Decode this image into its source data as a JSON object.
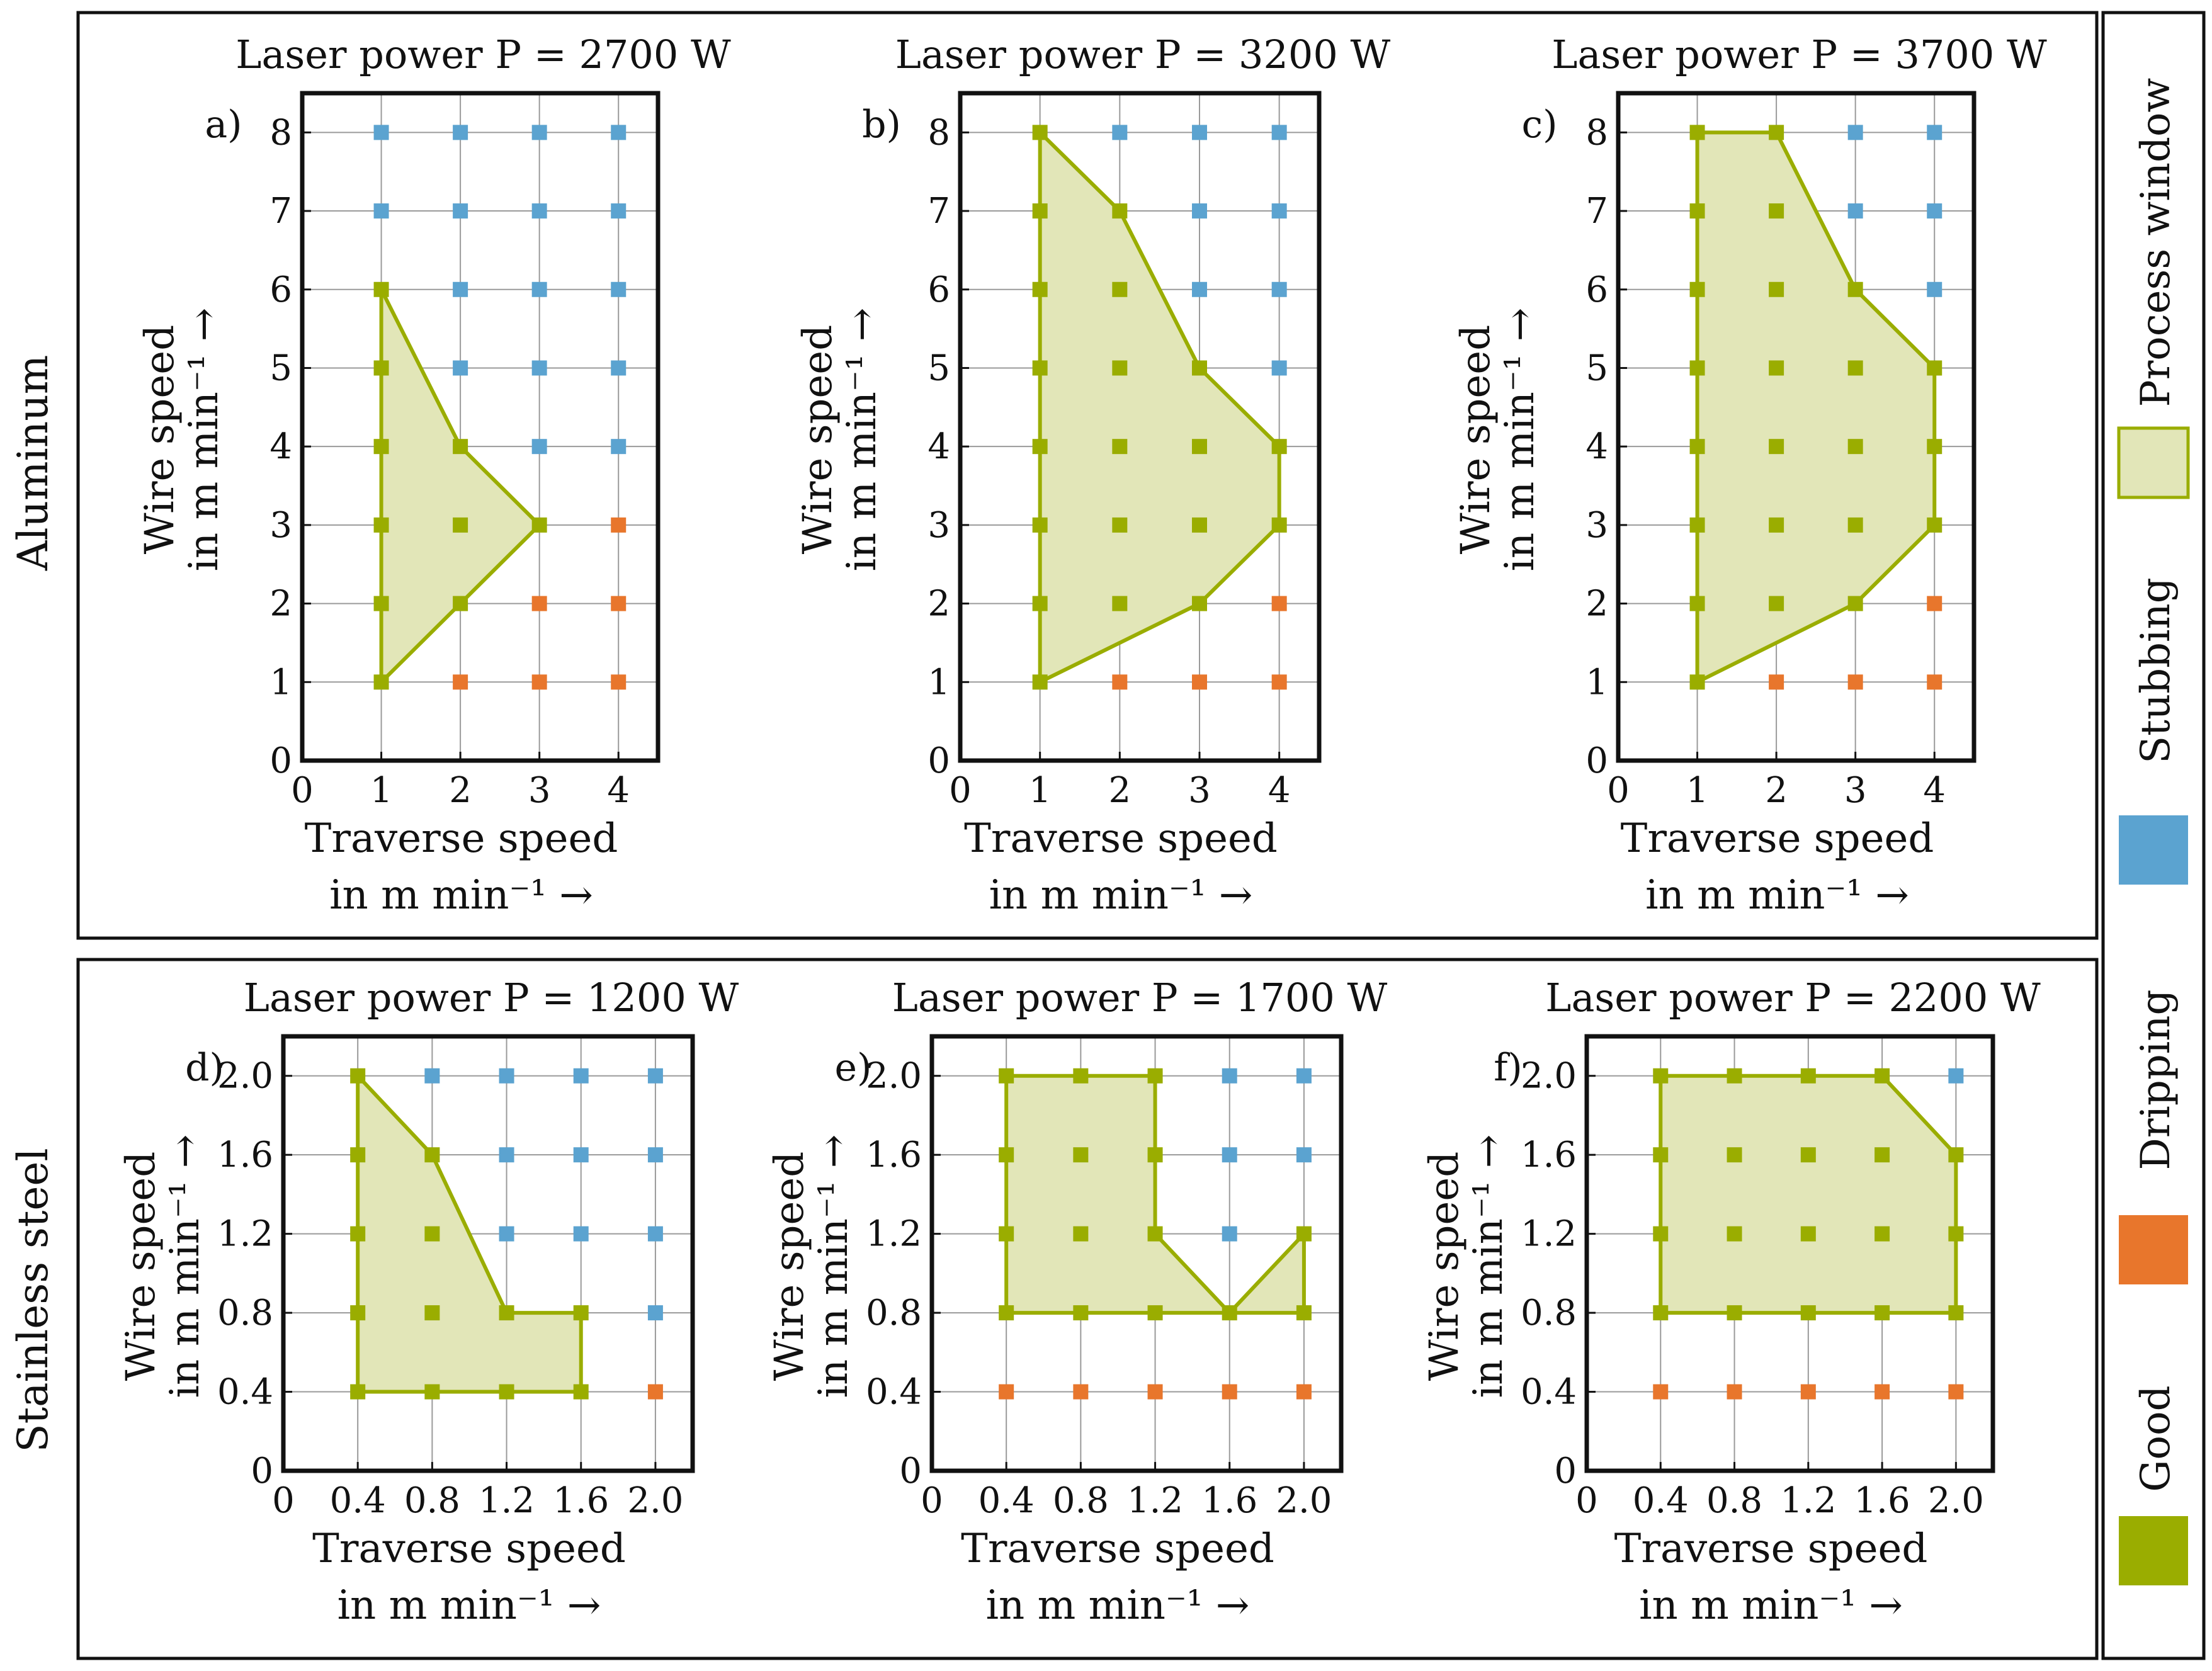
{
  "colors": {
    "good": "#9aad00",
    "stubbing": "#5ba3d0",
    "dripping": "#e8762c",
    "window_fill": "#e2e6b8",
    "window_stroke": "#9aad00"
  },
  "groups": {
    "aluminum": "Aluminum",
    "stainless": "Stainless steel"
  },
  "legend": {
    "process_window": "Process window",
    "stubbing": "Stubbing",
    "dripping": "Dripping",
    "good": "Good"
  },
  "chart_data": [
    {
      "type": "scatter",
      "panel": "a)",
      "title": "Laser power P = 2700 W",
      "xlabel": "Traverse speed in m min⁻¹ →",
      "ylabel": "Wire speed in m min⁻¹ →",
      "xlim": [
        0,
        4.5
      ],
      "ylim": [
        0,
        8.5
      ],
      "xticks": [
        0,
        1,
        2,
        3,
        4
      ],
      "yticks": [
        0,
        1,
        2,
        3,
        4,
        5,
        6,
        7,
        8
      ],
      "xtick_labels": [
        "0",
        "1",
        "2",
        "3",
        "4"
      ],
      "ytick_labels": [
        "0",
        "1",
        "2",
        "3",
        "4",
        "5",
        "6",
        "7",
        "8"
      ],
      "good": [
        [
          1,
          1
        ],
        [
          1,
          2
        ],
        [
          1,
          3
        ],
        [
          1,
          4
        ],
        [
          1,
          5
        ],
        [
          1,
          6
        ],
        [
          2,
          2
        ],
        [
          2,
          3
        ],
        [
          2,
          4
        ],
        [
          3,
          3
        ]
      ],
      "stubbing": [
        [
          1,
          7
        ],
        [
          1,
          8
        ],
        [
          2,
          5
        ],
        [
          2,
          6
        ],
        [
          2,
          7
        ],
        [
          2,
          8
        ],
        [
          3,
          4
        ],
        [
          3,
          5
        ],
        [
          3,
          6
        ],
        [
          3,
          7
        ],
        [
          3,
          8
        ],
        [
          4,
          4
        ],
        [
          4,
          5
        ],
        [
          4,
          6
        ],
        [
          4,
          7
        ],
        [
          4,
          8
        ]
      ],
      "dripping": [
        [
          2,
          1
        ],
        [
          3,
          1
        ],
        [
          3,
          2
        ],
        [
          4,
          1
        ],
        [
          4,
          2
        ],
        [
          4,
          3
        ]
      ],
      "process_window": [
        [
          1,
          1
        ],
        [
          1,
          6
        ],
        [
          2,
          4
        ],
        [
          3,
          3
        ],
        [
          2,
          2
        ]
      ]
    },
    {
      "type": "scatter",
      "panel": "b)",
      "title": "Laser power P = 3200 W",
      "xlabel": "Traverse speed in m min⁻¹ →",
      "ylabel": "Wire speed in m min⁻¹ →",
      "xlim": [
        0,
        4.5
      ],
      "ylim": [
        0,
        8.5
      ],
      "xticks": [
        0,
        1,
        2,
        3,
        4
      ],
      "yticks": [
        0,
        1,
        2,
        3,
        4,
        5,
        6,
        7,
        8
      ],
      "xtick_labels": [
        "0",
        "1",
        "2",
        "3",
        "4"
      ],
      "ytick_labels": [
        "0",
        "1",
        "2",
        "3",
        "4",
        "5",
        "6",
        "7",
        "8"
      ],
      "good": [
        [
          1,
          1
        ],
        [
          1,
          2
        ],
        [
          1,
          3
        ],
        [
          1,
          4
        ],
        [
          1,
          5
        ],
        [
          1,
          6
        ],
        [
          1,
          7
        ],
        [
          1,
          8
        ],
        [
          2,
          2
        ],
        [
          2,
          3
        ],
        [
          2,
          4
        ],
        [
          2,
          5
        ],
        [
          2,
          6
        ],
        [
          2,
          7
        ],
        [
          3,
          2
        ],
        [
          3,
          3
        ],
        [
          3,
          4
        ],
        [
          3,
          5
        ],
        [
          4,
          3
        ],
        [
          4,
          4
        ]
      ],
      "stubbing": [
        [
          2,
          8
        ],
        [
          3,
          6
        ],
        [
          3,
          7
        ],
        [
          3,
          8
        ],
        [
          4,
          5
        ],
        [
          4,
          6
        ],
        [
          4,
          7
        ],
        [
          4,
          8
        ]
      ],
      "dripping": [
        [
          2,
          1
        ],
        [
          3,
          1
        ],
        [
          4,
          1
        ],
        [
          4,
          2
        ]
      ],
      "process_window": [
        [
          1,
          1
        ],
        [
          1,
          8
        ],
        [
          2,
          7
        ],
        [
          3,
          5
        ],
        [
          4,
          4
        ],
        [
          4,
          3
        ],
        [
          3,
          2
        ]
      ]
    },
    {
      "type": "scatter",
      "panel": "c)",
      "title": "Laser power P = 3700 W",
      "xlabel": "Traverse speed in m min⁻¹ →",
      "ylabel": "Wire speed in m min⁻¹ →",
      "xlim": [
        0,
        4.5
      ],
      "ylim": [
        0,
        8.5
      ],
      "xticks": [
        0,
        1,
        2,
        3,
        4
      ],
      "yticks": [
        0,
        1,
        2,
        3,
        4,
        5,
        6,
        7,
        8
      ],
      "xtick_labels": [
        "0",
        "1",
        "2",
        "3",
        "4"
      ],
      "ytick_labels": [
        "0",
        "1",
        "2",
        "3",
        "4",
        "5",
        "6",
        "7",
        "8"
      ],
      "good": [
        [
          1,
          1
        ],
        [
          1,
          2
        ],
        [
          1,
          3
        ],
        [
          1,
          4
        ],
        [
          1,
          5
        ],
        [
          1,
          6
        ],
        [
          1,
          7
        ],
        [
          1,
          8
        ],
        [
          2,
          2
        ],
        [
          2,
          3
        ],
        [
          2,
          4
        ],
        [
          2,
          5
        ],
        [
          2,
          6
        ],
        [
          2,
          7
        ],
        [
          2,
          8
        ],
        [
          3,
          2
        ],
        [
          3,
          3
        ],
        [
          3,
          4
        ],
        [
          3,
          5
        ],
        [
          3,
          6
        ],
        [
          4,
          3
        ],
        [
          4,
          4
        ],
        [
          4,
          5
        ]
      ],
      "stubbing": [
        [
          3,
          7
        ],
        [
          3,
          8
        ],
        [
          4,
          6
        ],
        [
          4,
          7
        ],
        [
          4,
          8
        ]
      ],
      "dripping": [
        [
          2,
          1
        ],
        [
          3,
          1
        ],
        [
          4,
          1
        ],
        [
          4,
          2
        ]
      ],
      "process_window": [
        [
          1,
          1
        ],
        [
          1,
          8
        ],
        [
          2,
          8
        ],
        [
          3,
          6
        ],
        [
          4,
          5
        ],
        [
          4,
          3
        ],
        [
          3,
          2
        ]
      ]
    },
    {
      "type": "scatter",
      "panel": "d)",
      "title": "Laser power P = 1200 W",
      "xlabel": "Traverse speed in m min⁻¹ →",
      "ylabel": "Wire speed in m min⁻¹ →",
      "xlim": [
        0,
        2.2
      ],
      "ylim": [
        0,
        2.2
      ],
      "xticks": [
        0,
        0.4,
        0.8,
        1.2,
        1.6,
        2.0
      ],
      "yticks": [
        0,
        0.4,
        0.8,
        1.2,
        1.6,
        2.0
      ],
      "xtick_labels": [
        "0",
        "0.4",
        "0.8",
        "1.2",
        "1.6",
        "2.0"
      ],
      "ytick_labels": [
        "0",
        "0.4",
        "0.8",
        "1.2",
        "1.6",
        "2.0"
      ],
      "good": [
        [
          0.4,
          0.4
        ],
        [
          0.4,
          0.8
        ],
        [
          0.4,
          1.2
        ],
        [
          0.4,
          1.6
        ],
        [
          0.4,
          2.0
        ],
        [
          0.8,
          0.4
        ],
        [
          0.8,
          0.8
        ],
        [
          0.8,
          1.2
        ],
        [
          0.8,
          1.6
        ],
        [
          1.2,
          0.4
        ],
        [
          1.2,
          0.8
        ],
        [
          1.6,
          0.4
        ],
        [
          1.6,
          0.8
        ]
      ],
      "stubbing": [
        [
          0.8,
          2.0
        ],
        [
          1.2,
          1.2
        ],
        [
          1.2,
          1.6
        ],
        [
          1.2,
          2.0
        ],
        [
          1.6,
          1.2
        ],
        [
          1.6,
          1.6
        ],
        [
          1.6,
          2.0
        ],
        [
          2.0,
          0.8
        ],
        [
          2.0,
          1.2
        ],
        [
          2.0,
          1.6
        ],
        [
          2.0,
          2.0
        ]
      ],
      "dripping": [
        [
          2.0,
          0.4
        ]
      ],
      "process_window": [
        [
          0.4,
          0.4
        ],
        [
          0.4,
          2.0
        ],
        [
          0.8,
          1.6
        ],
        [
          1.2,
          0.8
        ],
        [
          1.6,
          0.8
        ],
        [
          1.6,
          0.4
        ]
      ]
    },
    {
      "type": "scatter",
      "panel": "e)",
      "title": "Laser power P = 1700 W",
      "xlabel": "Traverse speed in m min⁻¹ →",
      "ylabel": "Wire speed in m min⁻¹ →",
      "xlim": [
        0,
        2.2
      ],
      "ylim": [
        0,
        2.2
      ],
      "xticks": [
        0,
        0.4,
        0.8,
        1.2,
        1.6,
        2.0
      ],
      "yticks": [
        0,
        0.4,
        0.8,
        1.2,
        1.6,
        2.0
      ],
      "xtick_labels": [
        "0",
        "0.4",
        "0.8",
        "1.2",
        "1.6",
        "2.0"
      ],
      "ytick_labels": [
        "0",
        "0.4",
        "0.8",
        "1.2",
        "1.6",
        "2.0"
      ],
      "good": [
        [
          0.4,
          0.8
        ],
        [
          0.4,
          1.2
        ],
        [
          0.4,
          1.6
        ],
        [
          0.4,
          2.0
        ],
        [
          0.8,
          0.8
        ],
        [
          0.8,
          1.2
        ],
        [
          0.8,
          1.6
        ],
        [
          0.8,
          2.0
        ],
        [
          1.2,
          0.8
        ],
        [
          1.2,
          1.2
        ],
        [
          1.2,
          1.6
        ],
        [
          1.2,
          2.0
        ],
        [
          1.6,
          0.8
        ],
        [
          2.0,
          0.8
        ],
        [
          2.0,
          1.2
        ]
      ],
      "stubbing": [
        [
          1.6,
          1.2
        ],
        [
          1.6,
          1.6
        ],
        [
          1.6,
          2.0
        ],
        [
          2.0,
          1.6
        ],
        [
          2.0,
          2.0
        ]
      ],
      "dripping": [
        [
          0.4,
          0.4
        ],
        [
          0.8,
          0.4
        ],
        [
          1.2,
          0.4
        ],
        [
          1.6,
          0.4
        ],
        [
          2.0,
          0.4
        ]
      ],
      "process_window": [
        [
          0.4,
          0.8
        ],
        [
          0.4,
          2.0
        ],
        [
          1.2,
          2.0
        ],
        [
          1.2,
          1.2
        ],
        [
          1.6,
          0.8
        ],
        [
          2.0,
          1.2
        ],
        [
          2.0,
          0.8
        ]
      ]
    },
    {
      "type": "scatter",
      "panel": "f)",
      "title": "Laser power P = 2200 W",
      "xlabel": "Traverse speed in m min⁻¹ →",
      "ylabel": "Wire speed in m min⁻¹ →",
      "xlim": [
        0,
        2.2
      ],
      "ylim": [
        0,
        2.2
      ],
      "xticks": [
        0,
        0.4,
        0.8,
        1.2,
        1.6,
        2.0
      ],
      "yticks": [
        0,
        0.4,
        0.8,
        1.2,
        1.6,
        2.0
      ],
      "xtick_labels": [
        "0",
        "0.4",
        "0.8",
        "1.2",
        "1.6",
        "2.0"
      ],
      "ytick_labels": [
        "0",
        "0.4",
        "0.8",
        "1.2",
        "1.6",
        "2.0"
      ],
      "good": [
        [
          0.4,
          0.8
        ],
        [
          0.4,
          1.2
        ],
        [
          0.4,
          1.6
        ],
        [
          0.4,
          2.0
        ],
        [
          0.8,
          0.8
        ],
        [
          0.8,
          1.2
        ],
        [
          0.8,
          1.6
        ],
        [
          0.8,
          2.0
        ],
        [
          1.2,
          0.8
        ],
        [
          1.2,
          1.2
        ],
        [
          1.2,
          1.6
        ],
        [
          1.2,
          2.0
        ],
        [
          1.6,
          0.8
        ],
        [
          1.6,
          1.2
        ],
        [
          1.6,
          1.6
        ],
        [
          1.6,
          2.0
        ],
        [
          2.0,
          0.8
        ],
        [
          2.0,
          1.2
        ],
        [
          2.0,
          1.6
        ]
      ],
      "stubbing": [
        [
          2.0,
          2.0
        ]
      ],
      "dripping": [
        [
          0.4,
          0.4
        ],
        [
          0.8,
          0.4
        ],
        [
          1.2,
          0.4
        ],
        [
          1.6,
          0.4
        ],
        [
          2.0,
          0.4
        ]
      ],
      "process_window": [
        [
          0.4,
          0.8
        ],
        [
          0.4,
          2.0
        ],
        [
          1.6,
          2.0
        ],
        [
          2.0,
          1.6
        ],
        [
          2.0,
          0.8
        ]
      ]
    }
  ]
}
